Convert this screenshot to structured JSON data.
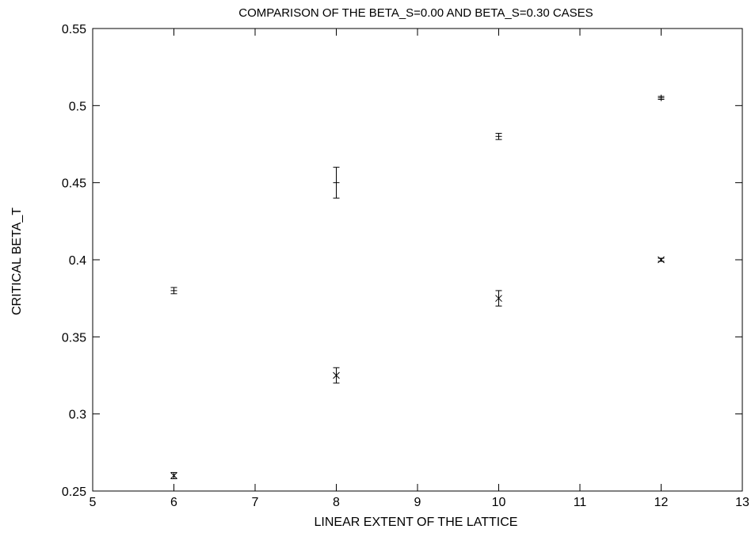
{
  "chart_data": {
    "type": "scatter",
    "title": "COMPARISON OF THE BETA_S=0.00 AND BETA_S=0.30 CASES",
    "xlabel": "LINEAR EXTENT OF THE LATTICE",
    "ylabel": "CRITICAL BETA_T",
    "xlim": [
      5,
      13
    ],
    "ylim": [
      0.25,
      0.55
    ],
    "xticks": [
      5,
      6,
      7,
      8,
      9,
      10,
      11,
      12,
      13
    ],
    "xtick_labels": [
      "5",
      "6",
      "7",
      "8",
      "9",
      "10",
      "11",
      "12",
      "13"
    ],
    "yticks": [
      0.25,
      0.3,
      0.35,
      0.4,
      0.45,
      0.5,
      0.55
    ],
    "ytick_labels": [
      "0.25",
      "0.3",
      "0.35",
      "0.4",
      "0.45",
      "0.5",
      "0.55"
    ],
    "grid": false,
    "legend": "none",
    "series": [
      {
        "marker": "plus",
        "points": [
          {
            "x": 6,
            "y": 0.38,
            "err": 0.002
          },
          {
            "x": 8,
            "y": 0.45,
            "err": 0.01
          },
          {
            "x": 10,
            "y": 0.48,
            "err": 0.002
          },
          {
            "x": 12,
            "y": 0.505,
            "err": 0.001
          }
        ]
      },
      {
        "marker": "cross",
        "points": [
          {
            "x": 6,
            "y": 0.26,
            "err": 0.002
          },
          {
            "x": 8,
            "y": 0.325,
            "err": 0.005
          },
          {
            "x": 10,
            "y": 0.375,
            "err": 0.005
          },
          {
            "x": 12,
            "y": 0.4,
            "err": 0.001
          }
        ]
      }
    ]
  }
}
